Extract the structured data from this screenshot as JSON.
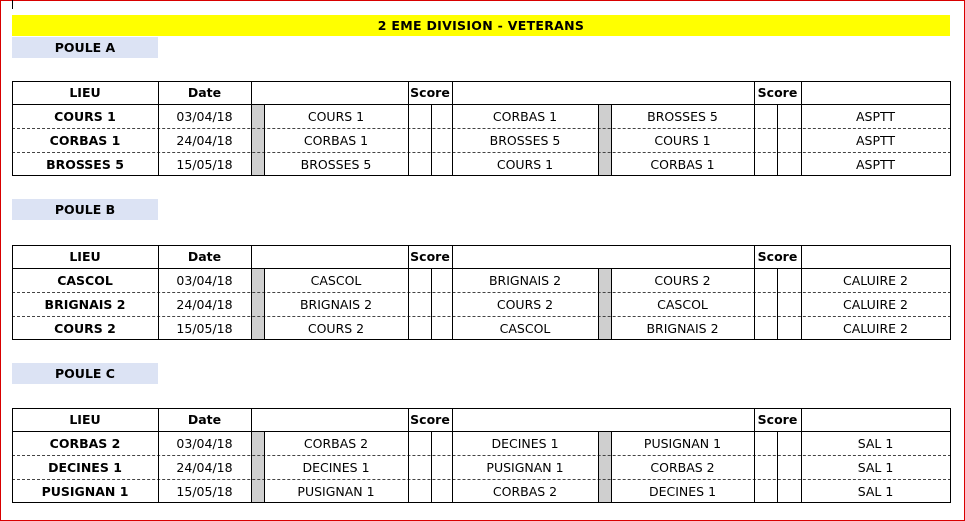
{
  "title": "2 EME DIVISION - VETERANS",
  "headers": {
    "lieu": "LIEU",
    "date": "Date",
    "score": "Score"
  },
  "pools": [
    {
      "name": "POULE A",
      "rows": [
        {
          "lieu": "COURS 1",
          "date": "03/04/18",
          "team1": "COURS 1",
          "team2": "CORBAS 1",
          "team3": "BROSSES 5",
          "exempt": "ASPTT"
        },
        {
          "lieu": "CORBAS 1",
          "date": "24/04/18",
          "team1": "CORBAS 1",
          "team2": "BROSSES 5",
          "team3": "COURS 1",
          "exempt": "ASPTT"
        },
        {
          "lieu": "BROSSES 5",
          "date": "15/05/18",
          "team1": "BROSSES 5",
          "team2": "COURS 1",
          "team3": "CORBAS 1",
          "exempt": "ASPTT"
        }
      ]
    },
    {
      "name": "POULE B",
      "rows": [
        {
          "lieu": "CASCOL",
          "date": "03/04/18",
          "team1": "CASCOL",
          "team2": "BRIGNAIS 2",
          "team3": "COURS 2",
          "exempt": "CALUIRE 2"
        },
        {
          "lieu": "BRIGNAIS 2",
          "date": "24/04/18",
          "team1": "BRIGNAIS 2",
          "team2": "COURS 2",
          "team3": "CASCOL",
          "exempt": "CALUIRE 2"
        },
        {
          "lieu": "COURS 2",
          "date": "15/05/18",
          "team1": "COURS 2",
          "team2": "CASCOL",
          "team3": "BRIGNAIS 2",
          "exempt": "CALUIRE 2"
        }
      ]
    },
    {
      "name": "POULE C",
      "rows": [
        {
          "lieu": "CORBAS 2",
          "date": "03/04/18",
          "team1": "CORBAS 2",
          "team2": "DECINES 1",
          "team3": "PUSIGNAN 1",
          "exempt": "SAL 1"
        },
        {
          "lieu": "DECINES 1",
          "date": "24/04/18",
          "team1": "DECINES 1",
          "team2": "PUSIGNAN 1",
          "team3": "CORBAS 2",
          "exempt": "SAL 1"
        },
        {
          "lieu": "PUSIGNAN 1",
          "date": "15/05/18",
          "team1": "PUSIGNAN 1",
          "team2": "CORBAS 2",
          "team3": "DECINES 1",
          "exempt": "SAL 1"
        }
      ]
    }
  ]
}
